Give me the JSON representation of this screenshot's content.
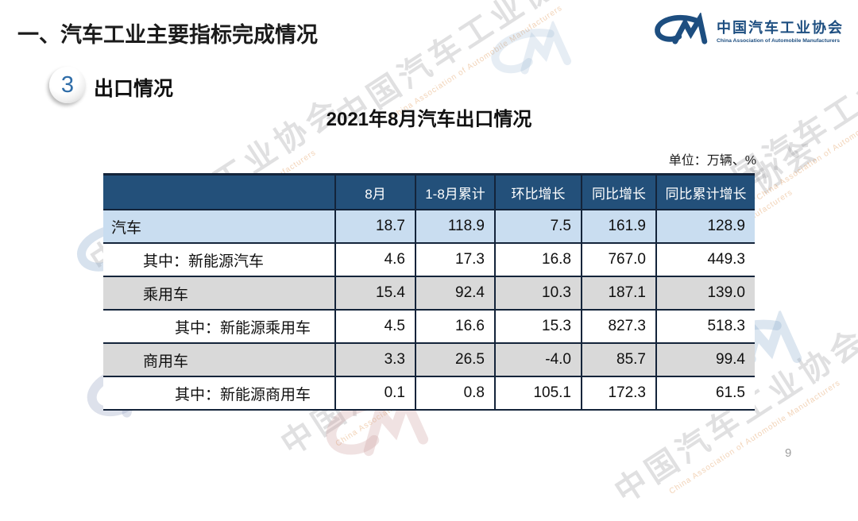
{
  "slide": {
    "section_title": "一、汽车工业主要指标完成情况",
    "badge_number": "3",
    "subsection_title": "出口情况",
    "table_title": "2021年8月汽车出口情况",
    "unit_label": "单位：万辆、%",
    "page_number": "9"
  },
  "logo": {
    "name_cn": "中国汽车工业协会",
    "name_en": "China Association of Automobile Manufacturers"
  },
  "watermark": {
    "text_cn": "中国汽车工业协会",
    "text_en": "China Association of Automobile Manufacturers"
  },
  "colors": {
    "header_bg": "#23507A",
    "row_highlight_blue": "#C9DDF0",
    "row_gray": "#D9D9D9",
    "row_white": "#FFFFFF",
    "table_border": "#14243A",
    "logo_blue": "#1D4E80",
    "badge_number_blue": "#2F6DA8"
  },
  "table": {
    "columns": [
      "",
      "8月",
      "1-8月累计",
      "环比增长",
      "同比增长",
      "同比累计增长"
    ],
    "rows": [
      {
        "label": "汽车",
        "indent": 0,
        "style": "blue",
        "values": [
          "18.7",
          "118.9",
          "7.5",
          "161.9",
          "128.9"
        ]
      },
      {
        "label": "其中：新能源汽车",
        "indent": 1,
        "style": "white",
        "values": [
          "4.6",
          "17.3",
          "16.8",
          "767.0",
          "449.3"
        ]
      },
      {
        "label": "乘用车",
        "indent": 1,
        "style": "gray",
        "values": [
          "15.4",
          "92.4",
          "10.3",
          "187.1",
          "139.0"
        ]
      },
      {
        "label": "其中：新能源乘用车",
        "indent": 2,
        "style": "white",
        "values": [
          "4.5",
          "16.6",
          "15.3",
          "827.3",
          "518.3"
        ]
      },
      {
        "label": "商用车",
        "indent": 1,
        "style": "gray",
        "values": [
          "3.3",
          "26.5",
          "-4.0",
          "85.7",
          "99.4"
        ]
      },
      {
        "label": "其中：新能源商用车",
        "indent": 2,
        "style": "white",
        "values": [
          "0.1",
          "0.8",
          "105.1",
          "172.3",
          "61.5"
        ]
      }
    ]
  }
}
